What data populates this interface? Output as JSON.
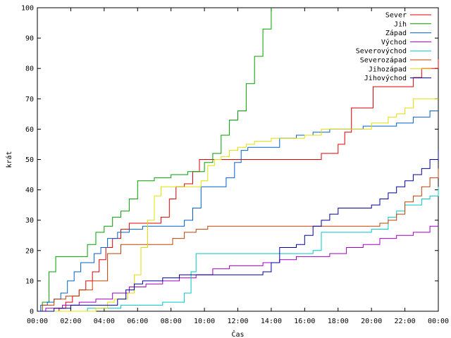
{
  "chart_data": {
    "type": "line",
    "xlabel": "Čas",
    "ylabel": "krát",
    "xlim": [
      0,
      24
    ],
    "ylim": [
      0,
      100
    ],
    "x_tick_labels": [
      "00:00",
      "02:00",
      "04:00",
      "06:00",
      "08:00",
      "10:00",
      "12:00",
      "14:00",
      "16:00",
      "18:00",
      "20:00",
      "22:00",
      "00:00"
    ],
    "y_tick_labels": [
      "0",
      "10",
      "20",
      "30",
      "40",
      "50",
      "60",
      "70",
      "80",
      "90",
      "100"
    ],
    "legend_position": "top-right",
    "grid": false,
    "series": [
      {
        "name": "Sever",
        "color": "#e00000",
        "x": [
          0,
          0.9,
          1.3,
          1.7,
          2.1,
          2.5,
          2.9,
          3.3,
          3.7,
          4.1,
          4.5,
          5.0,
          5.5,
          6.0,
          7.0,
          7.4,
          7.9,
          8.3,
          8.8,
          9.3,
          9.7,
          10.1,
          12.0,
          13.0,
          14.0,
          15.0,
          16.0,
          17.0,
          17.5,
          18.0,
          18.4,
          18.8,
          19.5,
          20.1,
          21.0,
          22.0,
          22.5,
          23.0,
          23.5,
          24.0
        ],
        "y": [
          0,
          0,
          1,
          3,
          5,
          7,
          10,
          13,
          17,
          21,
          24,
          27,
          29,
          29,
          29,
          31,
          37,
          41,
          42,
          46,
          50,
          50,
          50,
          50,
          50,
          50,
          50,
          52,
          52,
          55,
          59,
          67,
          67,
          74,
          74,
          74,
          77,
          80,
          80,
          83
        ]
      },
      {
        "name": "Jih",
        "color": "#00a000",
        "x": [
          0,
          0.3,
          0.7,
          1.1,
          1.5,
          2.0,
          2.5,
          3.0,
          3.5,
          4.0,
          4.5,
          5.0,
          5.5,
          6.0,
          6.5,
          7.0,
          8.0,
          9.0,
          9.5,
          10.0,
          10.5,
          11.0,
          11.5,
          12.0,
          12.5,
          13.0,
          13.5,
          14.0
        ],
        "y": [
          0,
          3,
          13,
          18,
          18,
          18,
          18,
          22,
          26,
          28,
          31,
          33,
          37,
          43,
          43,
          44,
          45,
          46,
          46,
          49,
          52,
          58,
          63,
          66,
          75,
          84,
          93,
          100
        ]
      },
      {
        "name": "Západ",
        "color": "#0060d0",
        "x": [
          0,
          0.2,
          0.6,
          1.0,
          1.4,
          1.8,
          2.2,
          2.6,
          3.0,
          3.4,
          3.8,
          4.2,
          4.8,
          5.5,
          6.3,
          7.0,
          7.8,
          8.3,
          8.8,
          9.3,
          9.8,
          10.3,
          10.8,
          11.3,
          11.8,
          12.2,
          12.6,
          13.5,
          14.5,
          15.5,
          16.5,
          17.5,
          18.5,
          19.5,
          20.5,
          21.5,
          22.5,
          23.5,
          24.0
        ],
        "y": [
          0,
          2,
          3,
          4,
          6,
          10,
          13,
          16,
          16,
          19,
          21,
          24,
          26,
          27,
          28,
          28,
          28,
          28,
          30,
          34,
          41,
          41,
          41,
          44,
          49,
          53,
          54,
          54,
          57,
          58,
          59,
          60,
          60,
          61,
          61,
          62,
          64,
          66,
          66
        ]
      },
      {
        "name": "Východ",
        "color": "#a000c0",
        "x": [
          0,
          0.5,
          1.5,
          2.5,
          3.5,
          4.5,
          5.5,
          6.5,
          7.5,
          8.5,
          9.5,
          10.5,
          11.5,
          12.5,
          13.5,
          14.5,
          15.5,
          16.5,
          17.5,
          18.5,
          19.5,
          20.5,
          21.5,
          22.5,
          23.5,
          24.0
        ],
        "y": [
          0,
          1,
          2,
          3,
          4,
          6,
          8,
          9,
          10,
          11,
          12,
          14,
          15,
          15,
          16,
          17,
          18,
          18,
          19,
          21,
          22,
          24,
          25,
          26,
          28,
          28
        ]
      },
      {
        "name": "Severovýchod",
        "color": "#00c8c8",
        "x": [
          0,
          1,
          2,
          3,
          4,
          5,
          6,
          7,
          7.5,
          8.0,
          8.5,
          8.8,
          9.2,
          9.5,
          10.5,
          12.0,
          13.5,
          15.0,
          16.0,
          16.5,
          17.0,
          18.0,
          19.0,
          20.0,
          21.0,
          21.5,
          22.0,
          23.0,
          23.5,
          24.0
        ],
        "y": [
          0,
          0,
          0,
          1,
          1,
          2,
          2,
          2,
          3,
          3,
          3,
          6,
          13,
          19,
          19,
          19,
          19,
          19,
          19,
          20,
          26,
          26,
          26,
          27,
          31,
          33,
          35,
          37,
          38,
          41
        ]
      },
      {
        "name": "Severozápad",
        "color": "#c04000",
        "x": [
          0,
          0.3,
          1.0,
          1.7,
          2.5,
          3.3,
          4.2,
          5.0,
          5.8,
          6.5,
          7.3,
          8.1,
          8.8,
          9.5,
          10.2,
          11.0,
          12.0,
          13.5,
          15.0,
          16.5,
          18.0,
          19.0,
          20.0,
          20.5,
          21.0,
          21.5,
          22.0,
          22.5,
          23.0,
          23.5,
          24.0
        ],
        "y": [
          0,
          2,
          4,
          5,
          7,
          10,
          19,
          22,
          22,
          22,
          22,
          24,
          26,
          27,
          28,
          28,
          28,
          28,
          28,
          28,
          28,
          28,
          28,
          29,
          30,
          32,
          36,
          38,
          41,
          44,
          47
        ]
      },
      {
        "name": "Jihozápad",
        "color": "#e0e000",
        "x": [
          0,
          1,
          2,
          3,
          3.5,
          4.2,
          4.6,
          5.0,
          5.4,
          5.8,
          6.2,
          6.6,
          7.0,
          7.4,
          7.8,
          8.2,
          8.8,
          9.4,
          9.8,
          10.2,
          10.6,
          11.0,
          11.5,
          12.0,
          12.5,
          13.0,
          13.5,
          14.0,
          14.5,
          16.0,
          17.0,
          18.0,
          19.0,
          20.0,
          21.0,
          21.5,
          22.0,
          22.5,
          23.0,
          23.5,
          24.0
        ],
        "y": [
          0,
          0,
          0,
          0,
          1,
          3,
          4,
          4,
          6,
          12,
          21,
          30,
          38,
          41,
          41,
          41,
          41,
          41,
          43,
          48,
          50,
          51,
          53,
          54,
          55,
          56,
          56,
          57,
          57,
          58,
          60,
          60,
          60,
          62,
          64,
          65,
          67,
          70,
          70,
          70,
          70
        ]
      },
      {
        "name": "Jihovýchod",
        "color": "#0000a0",
        "x": [
          0,
          1,
          2,
          3,
          4,
          4.8,
          5.3,
          5.8,
          6.3,
          6.8,
          7.5,
          8.5,
          9.5,
          10.5,
          11.5,
          12.5,
          13.5,
          14.0,
          14.5,
          15.0,
          15.5,
          16.0,
          16.5,
          17.0,
          17.5,
          18.0,
          19.0,
          20.0,
          20.5,
          21.0,
          21.5,
          22.0,
          22.5,
          23.0,
          23.5,
          24.0
        ],
        "y": [
          0,
          1,
          2,
          2,
          2,
          4,
          7,
          9,
          10,
          10,
          11,
          12,
          12,
          12,
          12,
          12,
          13,
          16,
          21,
          21,
          22,
          25,
          28,
          30,
          32,
          34,
          34,
          35,
          37,
          39,
          41,
          43,
          45,
          47,
          50,
          53
        ]
      }
    ]
  }
}
